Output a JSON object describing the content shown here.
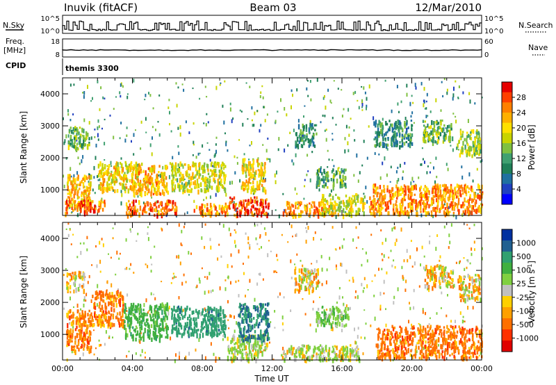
{
  "header": {
    "station": "Inuvik (fitACF)",
    "beam": "Beam 03",
    "date": "12/Mar/2010"
  },
  "panels": {
    "nsky": {
      "left_label": "N.Sky",
      "left_ticks": [
        "10^5",
        "10^0"
      ],
      "right_ticks": [
        "10^5",
        "10^0"
      ],
      "right_label": "N.Search"
    },
    "freq": {
      "left_label_1": "Freq.",
      "left_label_2": "[MHz]",
      "left_ticks": [
        "18",
        "8"
      ],
      "right_ticks": [
        "60",
        "0"
      ],
      "right_label": "Nave"
    },
    "cpid": {
      "label": "CPID",
      "program": "themis 3300"
    }
  },
  "chart_data": [
    {
      "type": "heatmap",
      "title": "",
      "ylabel": "Slant Range [km]",
      "ylim": [
        200,
        4500
      ],
      "y_ticks": [
        "1000",
        "2000",
        "3000",
        "4000"
      ],
      "xlim": [
        "00:00",
        "24:00"
      ],
      "colorbar": {
        "label": "Power [dB]",
        "ticks": [
          "28",
          "24",
          "20",
          "16",
          "12",
          "8",
          "4"
        ],
        "colors": [
          "#e60000",
          "#ff4000",
          "#ff8000",
          "#ffb000",
          "#ffe000",
          "#c8d400",
          "#7fc040",
          "#40a070",
          "#208058",
          "#2070a0",
          "#2040c0",
          "#0000ff"
        ]
      },
      "blobs_power": [
        {
          "t0": 0.2,
          "t1": 1.6,
          "r0": 450,
          "r1": 1500,
          "v": 22
        },
        {
          "t0": 0.1,
          "t1": 2.4,
          "r0": 300,
          "r1": 700,
          "v": 26
        },
        {
          "t0": 2.0,
          "t1": 4.5,
          "r0": 1000,
          "r1": 1900,
          "v": 20
        },
        {
          "t0": 3.5,
          "t1": 6.5,
          "r0": 250,
          "r1": 700,
          "v": 26
        },
        {
          "t0": 4.0,
          "t1": 6.0,
          "r0": 900,
          "r1": 1800,
          "v": 22
        },
        {
          "t0": 6.2,
          "t1": 9.3,
          "r0": 1000,
          "r1": 1900,
          "v": 18
        },
        {
          "t0": 7.5,
          "t1": 9.5,
          "r0": 250,
          "r1": 600,
          "v": 24
        },
        {
          "t0": 9.5,
          "t1": 11.8,
          "r0": 250,
          "r1": 800,
          "v": 28
        },
        {
          "t0": 10.2,
          "t1": 11.6,
          "r0": 1000,
          "r1": 2000,
          "v": 20
        },
        {
          "t0": 12.6,
          "t1": 15.5,
          "r0": 250,
          "r1": 650,
          "v": 24
        },
        {
          "t0": 14.8,
          "t1": 17.3,
          "r0": 250,
          "r1": 900,
          "v": 18
        },
        {
          "t0": 17.5,
          "t1": 24.0,
          "r0": 300,
          "r1": 1200,
          "v": 24
        },
        {
          "t0": 0.3,
          "t1": 1.5,
          "r0": 2300,
          "r1": 3000,
          "v": 14
        },
        {
          "t0": 13.3,
          "t1": 14.5,
          "r0": 2400,
          "r1": 3100,
          "v": 10
        },
        {
          "t0": 20.6,
          "t1": 22.3,
          "r0": 2500,
          "r1": 3200,
          "v": 14
        },
        {
          "t0": 22.5,
          "t1": 23.9,
          "r0": 2100,
          "r1": 2900,
          "v": 16
        },
        {
          "t0": 14.5,
          "t1": 16.2,
          "r0": 1100,
          "r1": 1700,
          "v": 12
        },
        {
          "t0": 17.8,
          "t1": 20.0,
          "r0": 2400,
          "r1": 3200,
          "v": 10
        }
      ],
      "data_name": "power-panel"
    },
    {
      "type": "heatmap",
      "title": "",
      "ylabel": "Slant Range [km]",
      "ylim": [
        200,
        4500
      ],
      "y_ticks": [
        "1000",
        "2000",
        "3000",
        "4000"
      ],
      "x_ticks": [
        "00:00",
        "04:00",
        "08:00",
        "12:00",
        "16:00",
        "20:00",
        "00:00"
      ],
      "xlabel": "Time UT",
      "colorbar": {
        "label": "Velocity [m s^-1]",
        "ticks": [
          "1000",
          "500",
          "100",
          "25",
          "-25",
          "-100",
          "-500",
          "-1000"
        ],
        "colors": [
          "#0030a0",
          "#206090",
          "#30a070",
          "#40b040",
          "#80d040",
          "#c0c0c0",
          "#ffd000",
          "#ffa000",
          "#ff7000",
          "#ff3000",
          "#e00000"
        ]
      },
      "blobs_velocity": [
        {
          "t0": 0.2,
          "t1": 1.6,
          "r0": 500,
          "r1": 1800,
          "v": -100
        },
        {
          "t0": 1.6,
          "t1": 3.5,
          "r0": 1300,
          "r1": 2400,
          "v": -100
        },
        {
          "t0": 3.5,
          "t1": 6.0,
          "r0": 900,
          "r1": 2000,
          "v": 300
        },
        {
          "t0": 6.2,
          "t1": 9.3,
          "r0": 1000,
          "r1": 1900,
          "v": 600
        },
        {
          "t0": 9.4,
          "t1": 11.7,
          "r0": 250,
          "r1": 1000,
          "v": 80
        },
        {
          "t0": 10.0,
          "t1": 11.8,
          "r0": 800,
          "r1": 2000,
          "v": 700
        },
        {
          "t0": 12.5,
          "t1": 17.0,
          "r0": 250,
          "r1": 700,
          "v": 60
        },
        {
          "t0": 18.0,
          "t1": 24.0,
          "r0": 300,
          "r1": 1300,
          "v": -120
        },
        {
          "t0": 13.2,
          "t1": 14.6,
          "r0": 2400,
          "r1": 3100,
          "v": 0
        },
        {
          "t0": 20.6,
          "t1": 22.4,
          "r0": 2500,
          "r1": 3200,
          "v": 0
        },
        {
          "t0": 22.6,
          "t1": 23.9,
          "r0": 2100,
          "r1": 2900,
          "v": 0
        },
        {
          "t0": 14.5,
          "t1": 16.5,
          "r0": 1300,
          "r1": 1900,
          "v": 150
        },
        {
          "t0": 0.2,
          "t1": 1.2,
          "r0": 2400,
          "r1": 3000,
          "v": 0
        }
      ],
      "data_name": "velocity-panel"
    }
  ]
}
